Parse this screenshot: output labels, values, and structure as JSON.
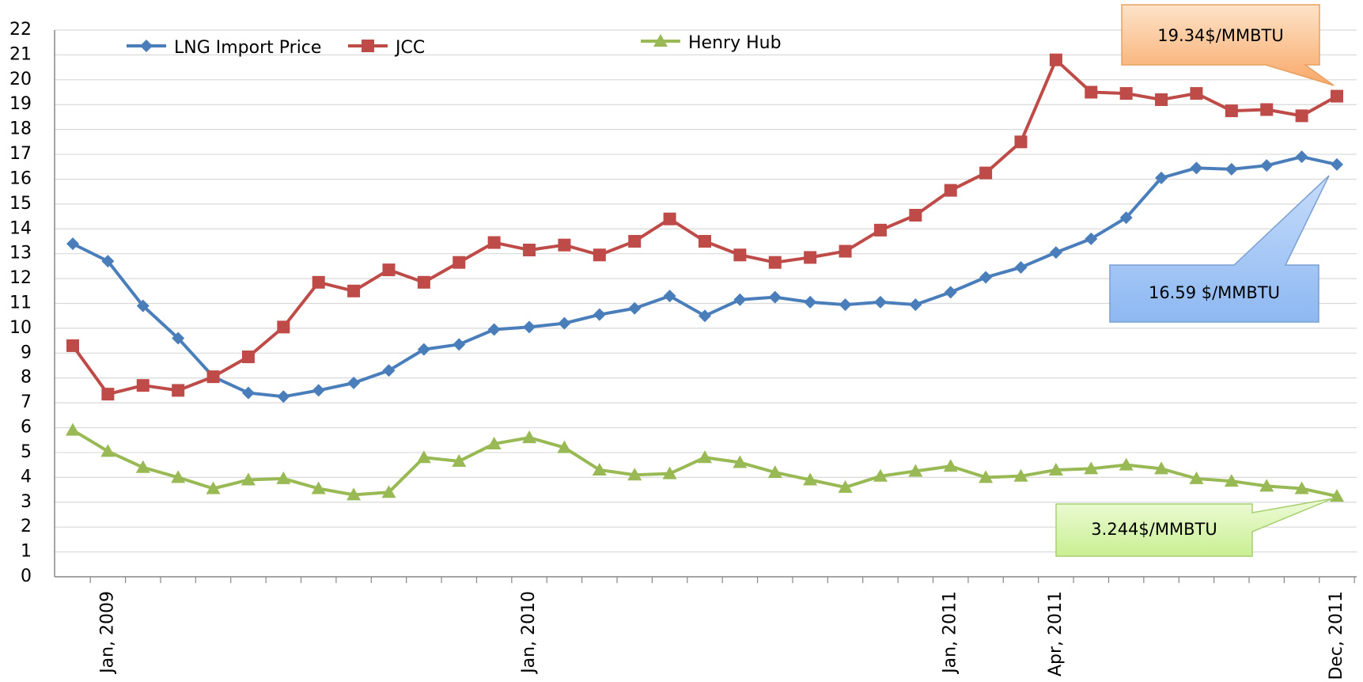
{
  "chart_data": {
    "type": "line",
    "categories": [
      null,
      "Jan, 2009",
      null,
      null,
      null,
      null,
      null,
      null,
      null,
      null,
      null,
      null,
      null,
      "Jan, 2010",
      null,
      null,
      null,
      null,
      null,
      null,
      null,
      null,
      null,
      null,
      null,
      "Jan, 2011",
      null,
      null,
      "Apr, 2011",
      null,
      null,
      null,
      null,
      null,
      null,
      null,
      "Dec, 2011"
    ],
    "series": [
      {
        "name": "LNG Import Price",
        "color": "#4a7ebb",
        "marker": "diamond",
        "values": [
          13.4,
          12.7,
          10.9,
          9.6,
          8.05,
          7.4,
          7.25,
          7.5,
          7.8,
          8.3,
          9.15,
          9.35,
          9.95,
          10.05,
          10.2,
          10.55,
          10.8,
          11.3,
          10.5,
          11.15,
          11.25,
          11.05,
          10.95,
          11.05,
          10.95,
          11.45,
          12.05,
          12.45,
          13.05,
          13.6,
          14.45,
          16.05,
          16.45,
          16.4,
          16.55,
          16.9,
          16.59
        ]
      },
      {
        "name": "JCC",
        "color": "#be4b48",
        "marker": "square",
        "values": [
          9.3,
          7.35,
          7.7,
          7.5,
          8.05,
          8.85,
          10.05,
          11.85,
          11.5,
          12.35,
          11.85,
          12.65,
          13.45,
          13.15,
          13.35,
          12.95,
          13.5,
          14.4,
          13.5,
          12.95,
          12.65,
          12.85,
          13.1,
          13.95,
          14.55,
          15.55,
          16.25,
          17.5,
          20.8,
          19.5,
          19.45,
          19.2,
          19.45,
          18.75,
          18.8,
          18.55,
          19.34
        ]
      },
      {
        "name": "Henry Hub",
        "color": "#98b954",
        "marker": "triangle",
        "values": [
          5.9,
          5.05,
          4.4,
          4.0,
          3.55,
          3.9,
          3.95,
          3.55,
          3.3,
          3.4,
          4.8,
          4.65,
          5.35,
          5.6,
          5.2,
          4.3,
          4.1,
          4.15,
          4.8,
          4.6,
          4.2,
          3.9,
          3.6,
          4.05,
          4.25,
          4.45,
          4.0,
          4.05,
          4.3,
          4.35,
          4.5,
          4.35,
          3.95,
          3.85,
          3.65,
          3.55,
          3.244
        ]
      }
    ],
    "ylim": [
      0,
      22
    ],
    "yticks": [
      0,
      1,
      2,
      3,
      4,
      5,
      6,
      7,
      8,
      9,
      10,
      11,
      12,
      13,
      14,
      15,
      16,
      17,
      18,
      19,
      20,
      21,
      22
    ],
    "grid": true,
    "legend": "top",
    "annotations": [
      "19.34$/MMBTU",
      "16.59 $/MMBTU",
      "3.244$/MMBTU"
    ]
  }
}
